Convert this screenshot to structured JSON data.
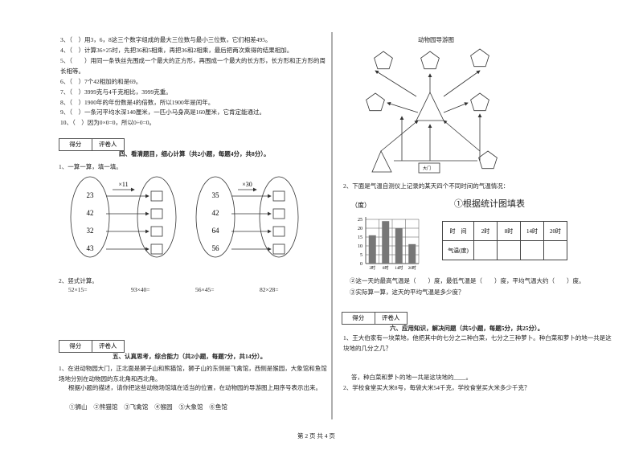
{
  "left": {
    "judge_items": [
      "3、（　）用3，6，8这三个数字组成的最大三位数与最小三位数，它们相差495。",
      "4、（　）计算36×25时，先把36和5相乘，再把36和2相乘，最后把两次乘得的结果相加。",
      "5、（　　）用同一条铁丝先围成一个最大的正方形，再围成一个最大的长方形，长方形和正方形的周长相等。",
      "6、（　）7个42相加的和是69。",
      "7、（　）3999克与4千克相比，3999克重。",
      "8、（　）1900年的年份数是4的倍数，所以1900年是闰年。",
      "9、（　）一条河平均水深140厘米，一匹小马身高是160厘米，它肯定能通过。",
      "10、（　）因为0×0=0，所以0÷0=0。"
    ],
    "section4": {
      "score_box": [
        "得分",
        "评卷人"
      ],
      "title": "四、看清题目，细心计算（共2小题，每题4分，共8分）。",
      "q1": "1、一算一算，填一填。",
      "groups": [
        {
          "op": "×11",
          "numbers": [
            23,
            42,
            32,
            43
          ]
        },
        {
          "op": "×30",
          "numbers": [
            35,
            42,
            64,
            56
          ]
        }
      ],
      "q2": "2、竖式计算。",
      "calcs": [
        "52×15=",
        "93×40=",
        "56×45=",
        "82×28="
      ]
    },
    "section5": {
      "score_box": [
        "得分",
        "评卷人"
      ],
      "title": "五、认真思考，综合能力（共2小题，每题7分，共14分）。",
      "q1": "1、在进动物园大门，正北面是狮子山和熊猫馆，狮子山的东侧是飞禽馆，西侧是猴园，大象馆和鱼馆场地分别在动物园的东北角和西北角。",
      "instruction": "根据小题的描述，请你把这些动物场馆填在适当的位置，在动物园的导游图上用序号表示出来。",
      "options": "①狮山 ②熊猫馆 ③飞禽馆 ④猴园 ⑤大象馆 ⑥鱼馆"
    }
  },
  "right": {
    "zoo_map": {
      "title": "动物园导游图",
      "gate": "大门"
    },
    "q2": "2、下面是气温自测仪上记录的某天四个不同时间的气温情况：",
    "temperature_chart": {
      "type": "bar",
      "y_label": "（度）",
      "categories": [
        "2时",
        "8时",
        "14时",
        "20时"
      ],
      "values": [
        16,
        24,
        20,
        11
      ],
      "ylim": [
        0,
        25
      ],
      "yticks": [
        0,
        5,
        10,
        15,
        20,
        25
      ],
      "color": "#777777",
      "grid": true
    },
    "task1": "①根据统计图填表",
    "table": {
      "rows": [
        [
          "时　间",
          "2时",
          "8时",
          "14时",
          "20时"
        ],
        [
          "气温(度)"
        ]
      ]
    },
    "task2": "②这一天的最高气温是（　　）度，最低气温是（　　）度，平均气温大约（　　）度。",
    "task3": "③实际算一算，这天的平均气温是多少度？",
    "section6": {
      "score_box": [
        "得分",
        "评卷人"
      ],
      "title": "六、应用知识，解决问题（共5小题，每题5分，共25分）。",
      "q1": "1、王大伯家有一块菜地，他把其中的七分之二种白菜，七分之三种萝卜。种白菜和萝卜的地一共是这块地的几分之几？",
      "answer1": "答，种白菜和萝卜的地一共是这块地的____。",
      "q2": "2、学校食堂买大米8号，每袋大米54千克，学校食堂买大米多少千克？"
    }
  },
  "footer": "第 2 页 共 4 页"
}
